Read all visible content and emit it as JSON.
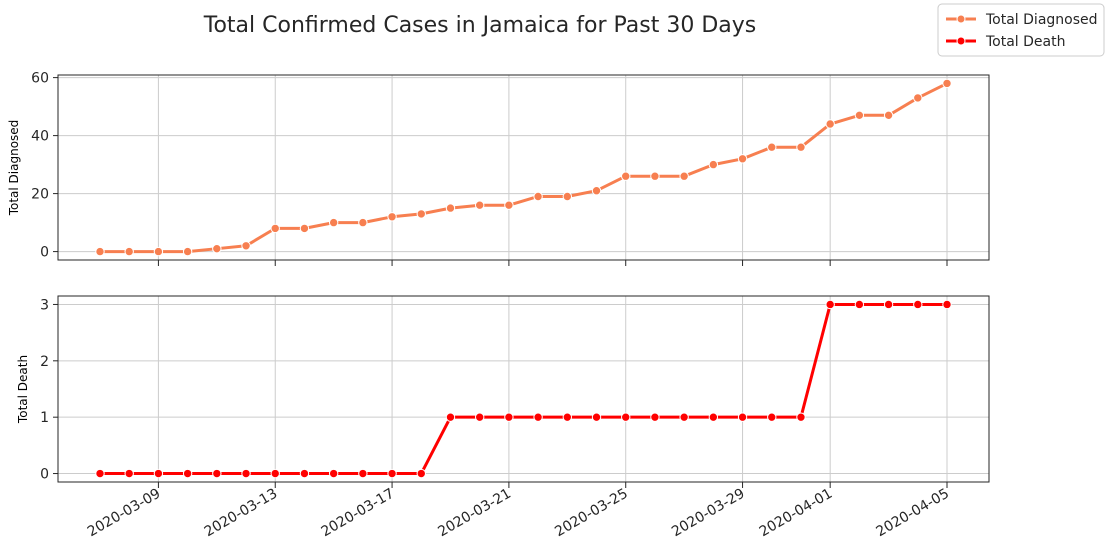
{
  "chart_data": {
    "type": "line",
    "title": "Total Confirmed Cases in Jamaica for Past 30 Days",
    "x": [
      "2020-03-07",
      "2020-03-08",
      "2020-03-09",
      "2020-03-10",
      "2020-03-11",
      "2020-03-12",
      "2020-03-13",
      "2020-03-14",
      "2020-03-15",
      "2020-03-16",
      "2020-03-17",
      "2020-03-18",
      "2020-03-19",
      "2020-03-20",
      "2020-03-21",
      "2020-03-22",
      "2020-03-23",
      "2020-03-24",
      "2020-03-25",
      "2020-03-26",
      "2020-03-27",
      "2020-03-28",
      "2020-03-29",
      "2020-03-30",
      "2020-03-31",
      "2020-04-01",
      "2020-04-02",
      "2020-04-03",
      "2020-04-04",
      "2020-04-05"
    ],
    "x_ticks": [
      "2020-03-09",
      "2020-03-13",
      "2020-03-17",
      "2020-03-21",
      "2020-03-25",
      "2020-03-29",
      "2020-04-01",
      "2020-04-05"
    ],
    "legend": {
      "placement": "top-right",
      "entries": [
        "Total Diagnosed",
        "Total Death"
      ]
    },
    "grid": true,
    "panels": [
      {
        "ylabel": "Total Diagnosed",
        "ylim": [
          -2.9,
          60.9
        ],
        "yticks": [
          0,
          20,
          40,
          60
        ],
        "series": [
          {
            "name": "Total Diagnosed",
            "color": "#f77f50",
            "values": [
              0,
              0,
              0,
              0,
              1,
              2,
              8,
              8,
              10,
              10,
              12,
              13,
              15,
              16,
              16,
              19,
              19,
              21,
              26,
              26,
              26,
              30,
              32,
              36,
              36,
              44,
              47,
              47,
              53,
              58
            ]
          }
        ]
      },
      {
        "ylabel": "Total Death",
        "ylim": [
          -0.15,
          3.15
        ],
        "yticks": [
          0,
          1,
          2,
          3
        ],
        "series": [
          {
            "name": "Total Death",
            "color": "#ff0000",
            "values": [
              0,
              0,
              0,
              0,
              0,
              0,
              0,
              0,
              0,
              0,
              0,
              0,
              1,
              1,
              1,
              1,
              1,
              1,
              1,
              1,
              1,
              1,
              1,
              1,
              1,
              3,
              3,
              3,
              3,
              3
            ]
          }
        ]
      }
    ]
  }
}
